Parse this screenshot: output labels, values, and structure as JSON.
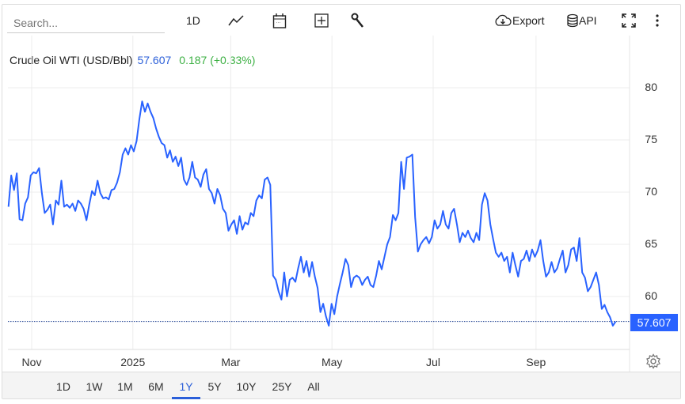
{
  "toolbar": {
    "search_placeholder": "Search...",
    "interval": "1D",
    "export_label": "Export",
    "api_label": "API"
  },
  "legend": {
    "name": "Crude Oil WTI (USD/Bbl)",
    "price": "57.607",
    "change": "0.187 (+0.33%)"
  },
  "price_tag": "57.607",
  "colors": {
    "line": "#2962ff",
    "up": "#3cb043",
    "price": "#2b5fd9"
  },
  "ranges": [
    {
      "label": "1D"
    },
    {
      "label": "1W"
    },
    {
      "label": "1M"
    },
    {
      "label": "6M"
    },
    {
      "label": "1Y",
      "active": true
    },
    {
      "label": "5Y"
    },
    {
      "label": "10Y"
    },
    {
      "label": "25Y"
    },
    {
      "label": "All"
    }
  ],
  "chart_data": {
    "type": "line",
    "title": "Crude Oil WTI (USD/Bbl)",
    "ylim": [
      55,
      82
    ],
    "yticks": [
      60,
      65,
      70,
      75,
      80
    ],
    "xticks": [
      {
        "label": "Nov",
        "date": "2024-11-01"
      },
      {
        "label": "2025",
        "date": "2025-01-01"
      },
      {
        "label": "Mar",
        "date": "2025-03-01"
      },
      {
        "label": "May",
        "date": "2025-05-01"
      },
      {
        "label": "Jul",
        "date": "2025-07-01"
      },
      {
        "label": "Sep",
        "date": "2025-09-01"
      }
    ],
    "start_date": "2024-10-18",
    "end_date": "2025-10-19",
    "last_value": 57.607,
    "values": [
      68.6,
      71.6,
      70.2,
      71.8,
      67.4,
      67.3,
      68.9,
      69.5,
      71.6,
      71.9,
      71.8,
      72.3,
      69.9,
      68.0,
      68.3,
      68.8,
      66.9,
      69.2,
      68.8,
      71.1,
      68.6,
      68.8,
      68.5,
      68.9,
      68.2,
      69.2,
      68.9,
      68.4,
      67.3,
      68.8,
      70.1,
      69.7,
      71.1,
      69.9,
      69.4,
      69.5,
      69.3,
      70.2,
      70.3,
      70.9,
      71.9,
      73.6,
      74.2,
      73.6,
      74.5,
      73.9,
      74.9,
      77.0,
      78.7,
      77.7,
      78.5,
      77.7,
      77.1,
      76.1,
      75.3,
      74.7,
      74.5,
      73.3,
      74.0,
      72.9,
      73.4,
      72.5,
      73.3,
      71.2,
      70.7,
      71.4,
      72.9,
      71.4,
      71.2,
      70.5,
      71.7,
      72.2,
      70.3,
      69.9,
      68.9,
      70.3,
      69.7,
      68.4,
      68.0,
      66.3,
      66.9,
      67.3,
      66.0,
      67.7,
      66.4,
      67.1,
      66.9,
      68.0,
      67.7,
      69.2,
      69.7,
      69.4,
      71.2,
      71.4,
      70.7,
      62.0,
      61.6,
      60.5,
      59.7,
      62.3,
      60.0,
      61.6,
      61.8,
      61.4,
      62.7,
      63.8,
      62.3,
      63.4,
      61.9,
      63.3,
      61.9,
      60.8,
      58.5,
      59.3,
      58.1,
      57.2,
      59.3,
      58.3,
      60.0,
      61.2,
      62.3,
      63.6,
      63.0,
      60.9,
      61.8,
      62.0,
      61.8,
      61.1,
      61.6,
      61.9,
      61.1,
      60.9,
      62.0,
      63.4,
      62.6,
      63.8,
      65.0,
      65.7,
      67.8,
      67.3,
      68.0,
      72.9,
      70.3,
      73.3,
      73.4,
      73.6,
      67.6,
      64.3,
      65.0,
      65.4,
      65.7,
      65.1,
      65.7,
      67.3,
      66.5,
      66.9,
      68.2,
      66.9,
      66.5,
      68.0,
      68.4,
      66.9,
      65.2,
      66.1,
      65.7,
      66.3,
      65.6,
      65.2,
      66.1,
      65.4,
      68.8,
      69.9,
      69.2,
      66.9,
      65.5,
      64.2,
      63.8,
      64.2,
      63.4,
      63.8,
      62.3,
      64.2,
      63.0,
      61.9,
      63.4,
      63.6,
      64.4,
      63.4,
      64.5,
      63.8,
      64.4,
      65.4,
      63.4,
      61.9,
      62.3,
      63.3,
      62.3,
      62.7,
      63.6,
      64.4,
      62.3,
      63.0,
      64.5,
      64.7,
      63.4,
      65.6,
      62.3,
      61.8,
      60.5,
      60.9,
      61.6,
      62.3,
      61.1,
      58.8,
      59.2,
      58.5,
      58.0,
      57.2,
      57.6
    ]
  }
}
